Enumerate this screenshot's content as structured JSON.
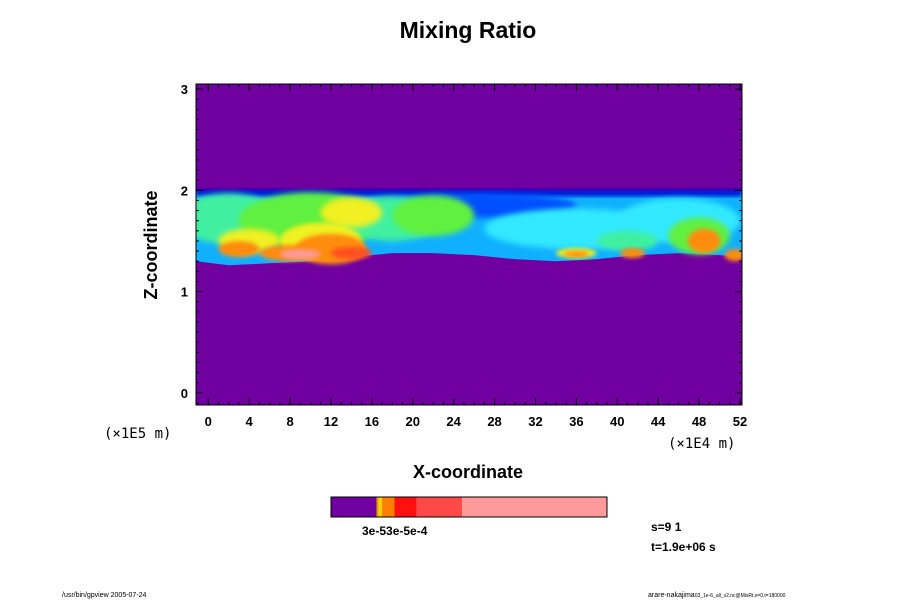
{
  "chart_data": {
    "type": "heatmap",
    "title": "Mixing Ratio",
    "xlabel": "X-coordinate",
    "ylabel": "Z-coordinate",
    "x_scale_label": "(×1E4 m)",
    "y_scale_label": "(×1E5 m)",
    "xlim": [
      -1.2,
      52.2
    ],
    "ylim": [
      -0.12,
      3.05
    ],
    "x_ticks": [
      "0",
      "4",
      "8",
      "12",
      "16",
      "20",
      "24",
      "28",
      "32",
      "36",
      "40",
      "44",
      "48",
      "52"
    ],
    "y_ticks": [
      "0",
      "1",
      "2",
      "3"
    ],
    "background_color": "#7000a0",
    "layer": {
      "top_z": 1.99,
      "base_z": [
        1.3,
        1.26,
        1.28,
        1.3,
        1.34,
        1.38,
        1.38,
        1.36,
        1.32,
        1.3,
        1.32,
        1.36,
        1.38,
        1.36,
        1.34
      ],
      "base_x": [
        -1.2,
        2,
        6,
        10,
        14,
        18,
        22,
        26,
        30,
        34,
        38,
        42,
        46,
        50,
        52.2
      ]
    },
    "colors": {
      "purple": "#7000a0",
      "dark_blue": "#0010d0",
      "blue": "#0050ff",
      "light_blue": "#10b0ff",
      "cyan": "#30e8ff",
      "aqua_green": "#40f0a0",
      "green": "#60f040",
      "yellow": "#f0f020",
      "orange": "#ff8c10",
      "red_orange": "#ff5020",
      "pink": "#ff9898"
    },
    "colorbar": {
      "label": "3e-53e-5e-4",
      "segments": [
        {
          "fraction": 0.165,
          "color": "#7000a0"
        },
        {
          "fraction": 0.008,
          "color": "#e0a000"
        },
        {
          "fraction": 0.012,
          "color": "#ffd000"
        },
        {
          "fraction": 0.045,
          "color": "#ff8000"
        },
        {
          "fraction": 0.08,
          "color": "#ff1010"
        },
        {
          "fraction": 0.165,
          "color": "#ff4848"
        },
        {
          "fraction": 0.525,
          "color": "#ff9a9a"
        }
      ]
    },
    "annotations": {
      "s": "s=9 1",
      "t": "t=1.9e+06 s"
    },
    "footer_left": "/usr/bin/gpview 2005-07-24",
    "footer_right": "arare-nakajima",
    "footer_right_small": "03_1e-6_all_v2.nc@MixRt,x=0,t=180000"
  }
}
